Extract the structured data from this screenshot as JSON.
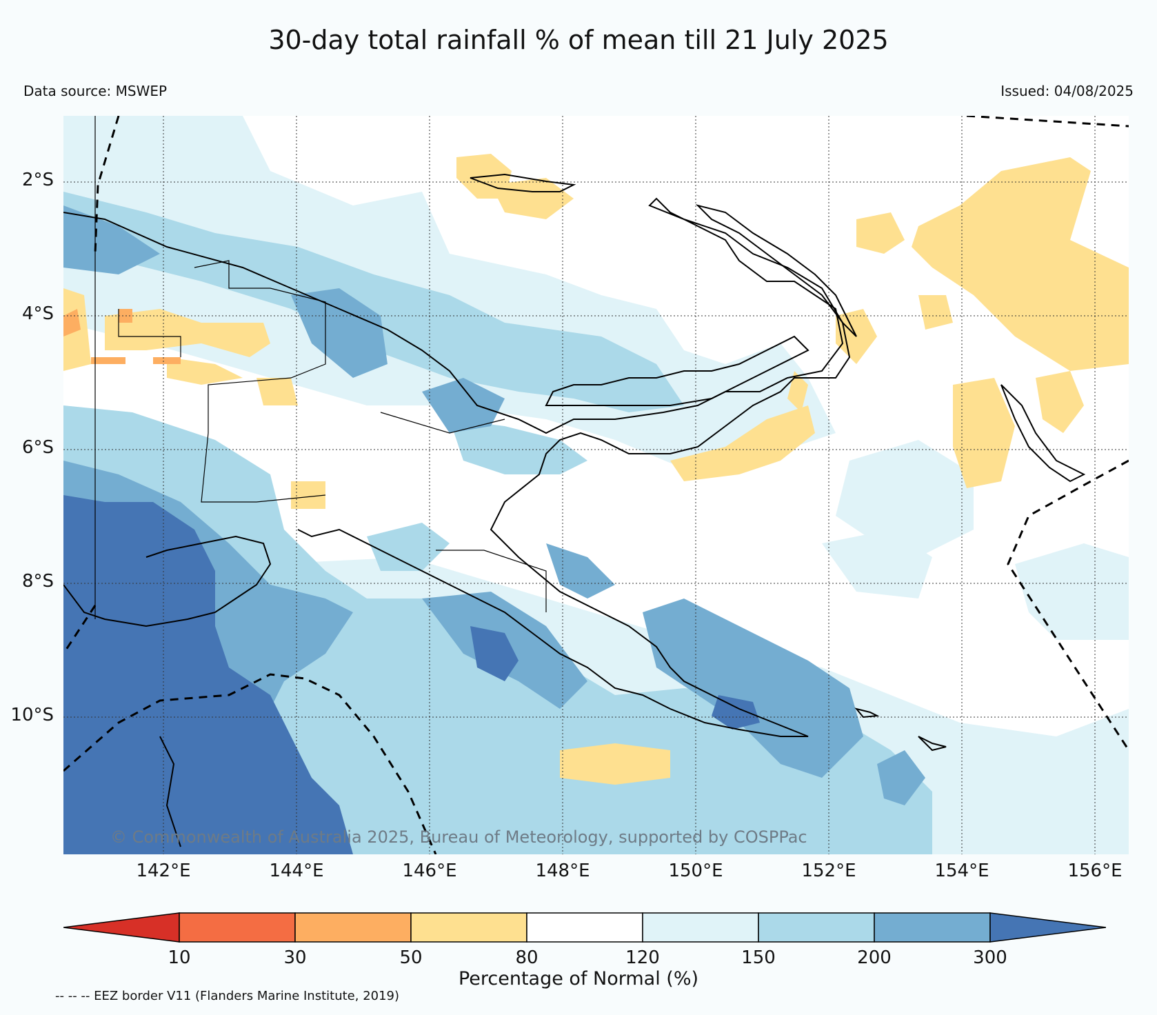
{
  "title": "30-day total rainfall % of mean till 21 July 2025",
  "data_source": "Data source: MSWEP",
  "issued": "Issued: 04/08/2025",
  "copyright": "© Commonwealth of Australia 2025, Bureau of Meteorology, supported by COSPPac",
  "eez_note": "-- -- -- EEZ border V11 (Flanders Marine Institute, 2019)",
  "lat_labels": [
    "2°S",
    "4°S",
    "6°S",
    "8°S",
    "10°S"
  ],
  "lon_labels": [
    "142°E",
    "144°E",
    "146°E",
    "148°E",
    "150°E",
    "152°E",
    "154°E",
    "156°E"
  ],
  "colorbar": {
    "label": "Percentage of Normal (%)",
    "ticks": [
      "10",
      "30",
      "50",
      "80",
      "120",
      "150",
      "200",
      "300"
    ],
    "colors": {
      "below_10": "#d73027",
      "10_30": "#f46d43",
      "30_50": "#fdae61",
      "50_80": "#fee090",
      "80_120": "#ffffff",
      "120_150": "#e0f3f8",
      "150_200": "#abd9e9",
      "200_300": "#74add1",
      "above_300": "#4575b4"
    }
  },
  "colors": {
    "background": "#f8fcfd",
    "coastline": "#000000",
    "grid": "#333333"
  }
}
